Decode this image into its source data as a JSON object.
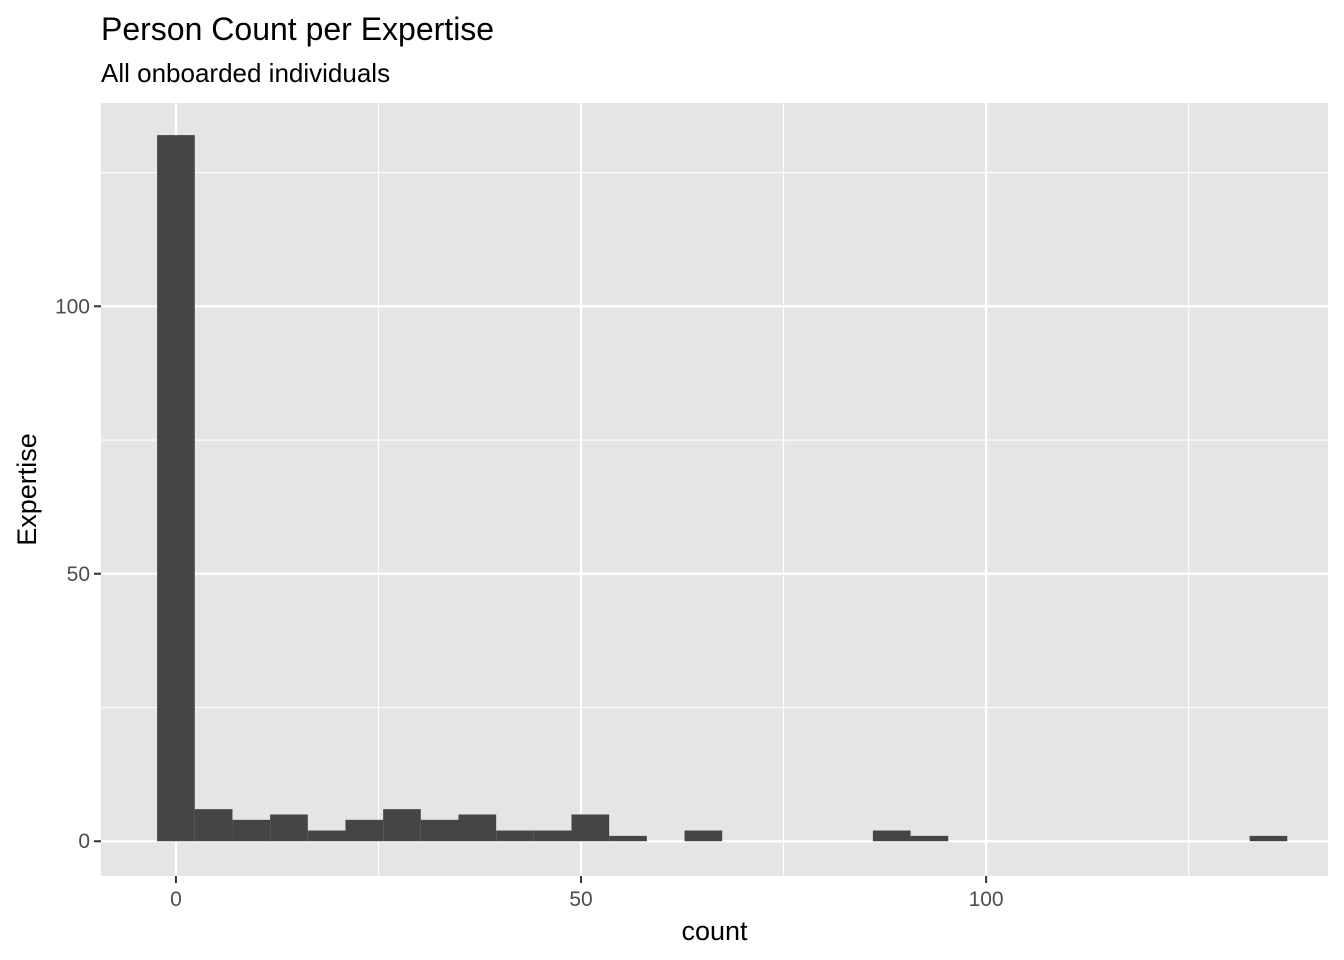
{
  "chart_data": {
    "type": "bar",
    "title": "Person Count per Expertise",
    "subtitle": "All onboarded individuals",
    "xlabel": "count",
    "ylabel": "Expertise",
    "xlim": [
      -9.25,
      142.2
    ],
    "ylim": [
      -6.5,
      138
    ],
    "x_ticks": [
      0,
      50,
      100
    ],
    "x_tick_labels": [
      "0",
      "50",
      "100"
    ],
    "y_ticks": [
      0,
      50,
      100
    ],
    "y_tick_labels": [
      "0",
      "50",
      "100"
    ],
    "x_minor_gridlines": [
      25,
      75,
      125
    ],
    "y_minor_gridlines": [
      25,
      75,
      125
    ],
    "grid": true,
    "panel_background": "#e5e5e5",
    "bar_color": "#454545",
    "bin_width": 4.65,
    "bins": [
      {
        "x": 0.0,
        "count": 132
      },
      {
        "x": 4.65,
        "count": 6
      },
      {
        "x": 9.3,
        "count": 4
      },
      {
        "x": 13.95,
        "count": 5
      },
      {
        "x": 18.6,
        "count": 2
      },
      {
        "x": 23.25,
        "count": 4
      },
      {
        "x": 27.9,
        "count": 6
      },
      {
        "x": 32.55,
        "count": 4
      },
      {
        "x": 37.2,
        "count": 5
      },
      {
        "x": 41.85,
        "count": 2
      },
      {
        "x": 46.5,
        "count": 2
      },
      {
        "x": 51.15,
        "count": 5
      },
      {
        "x": 55.8,
        "count": 1
      },
      {
        "x": 60.45,
        "count": 0
      },
      {
        "x": 65.1,
        "count": 2
      },
      {
        "x": 69.75,
        "count": 0
      },
      {
        "x": 74.4,
        "count": 0
      },
      {
        "x": 79.05,
        "count": 0
      },
      {
        "x": 83.7,
        "count": 0
      },
      {
        "x": 88.35,
        "count": 2
      },
      {
        "x": 93.0,
        "count": 1
      },
      {
        "x": 97.65,
        "count": 0
      },
      {
        "x": 102.3,
        "count": 0
      },
      {
        "x": 106.95,
        "count": 0
      },
      {
        "x": 111.6,
        "count": 0
      },
      {
        "x": 116.25,
        "count": 0
      },
      {
        "x": 120.9,
        "count": 0
      },
      {
        "x": 125.55,
        "count": 0
      },
      {
        "x": 130.2,
        "count": 0
      },
      {
        "x": 134.85,
        "count": 1
      }
    ]
  }
}
